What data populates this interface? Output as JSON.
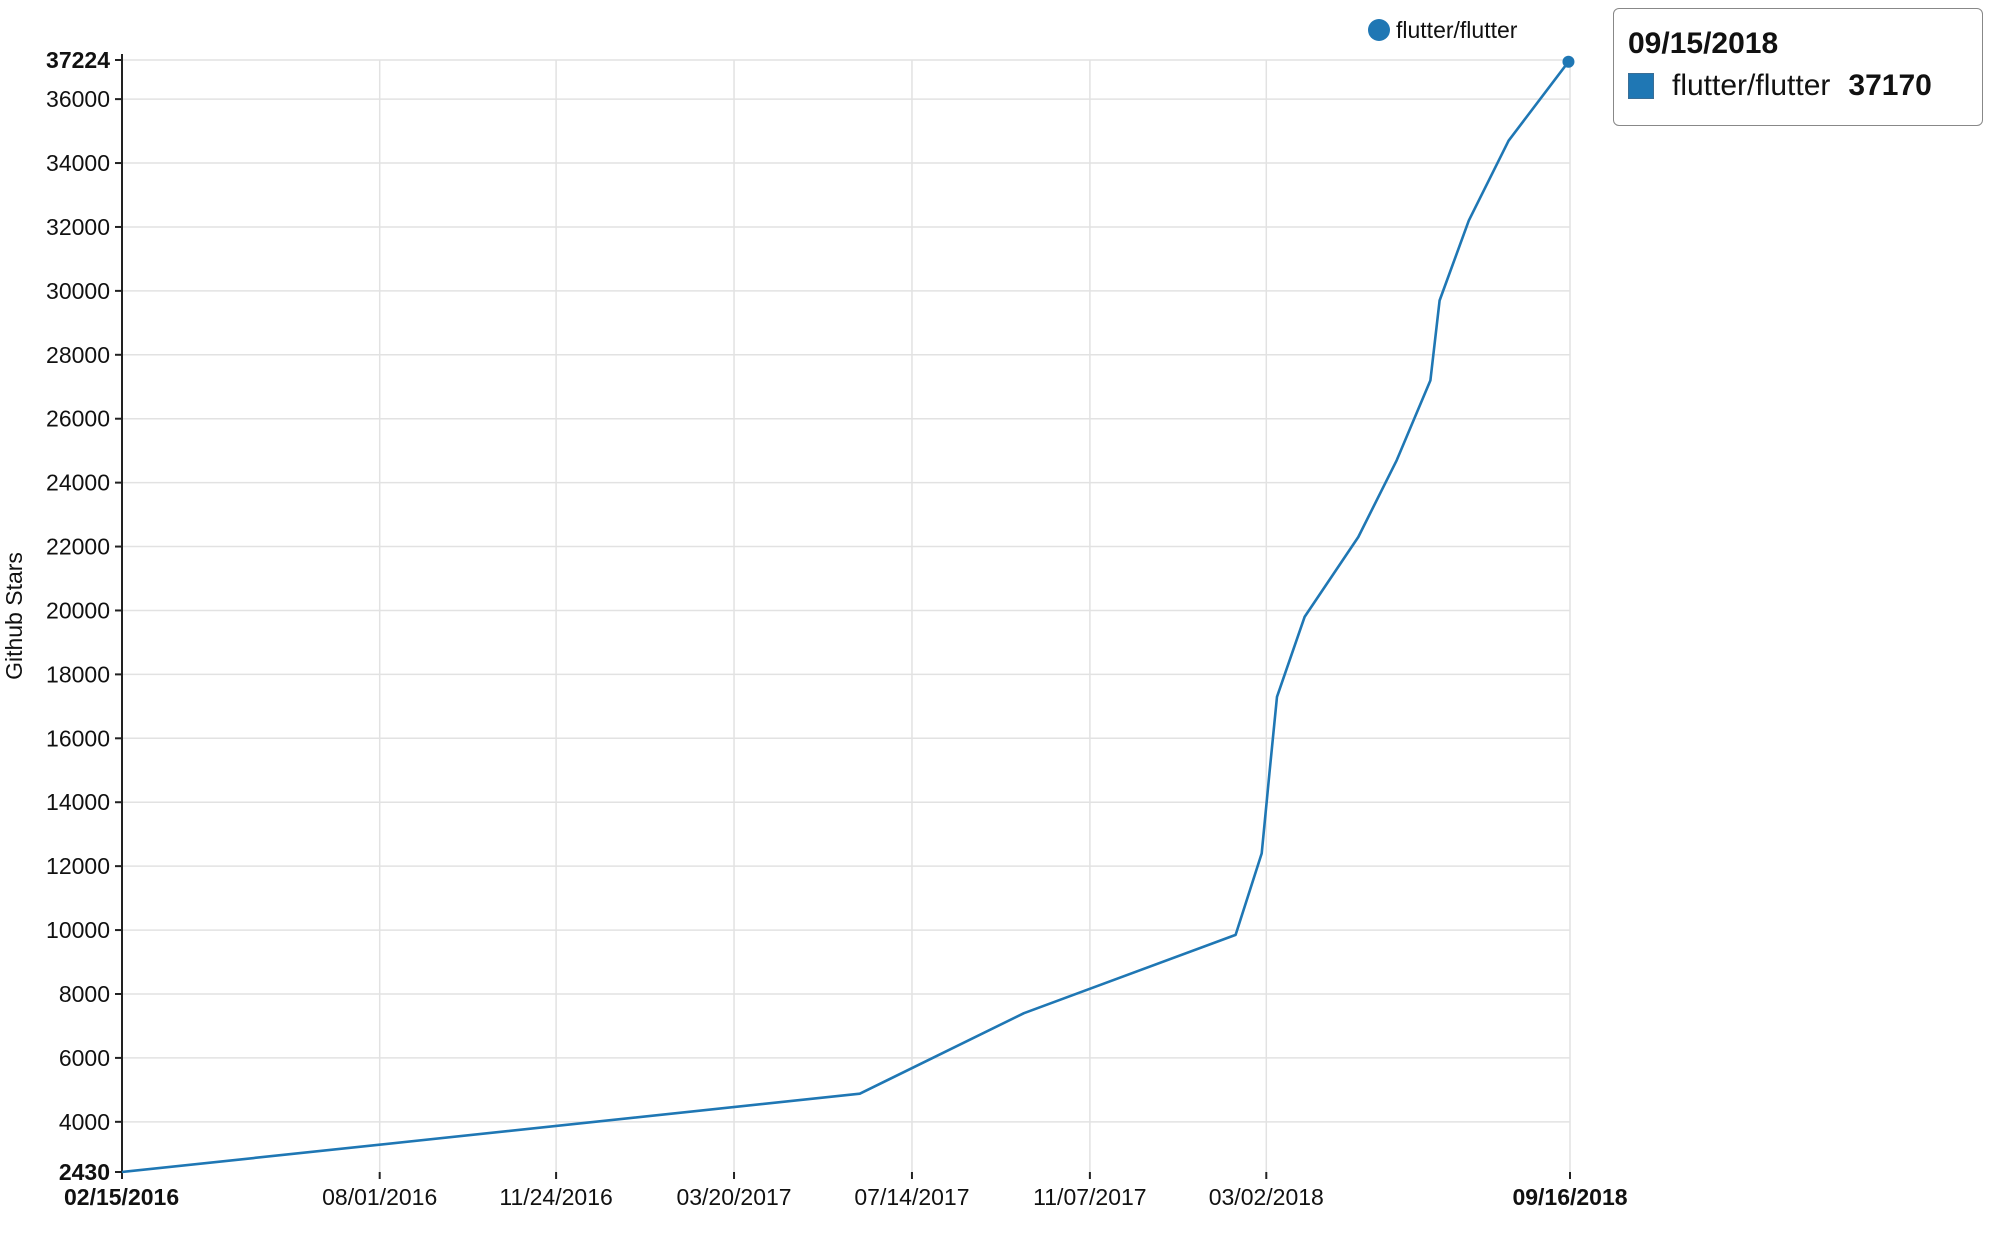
{
  "chart_data": {
    "type": "line",
    "xlabel": "",
    "ylabel": "Github Stars",
    "ylim": [
      2430,
      37224
    ],
    "xlim": [
      "02/15/2016",
      "09/16/2018"
    ],
    "y_ticks": [
      2430,
      4000,
      6000,
      8000,
      10000,
      12000,
      14000,
      16000,
      18000,
      20000,
      22000,
      24000,
      26000,
      28000,
      30000,
      32000,
      34000,
      36000,
      37224
    ],
    "y_ticks_bold": [
      2430,
      37224
    ],
    "x_ticks": [
      "02/15/2016",
      "08/01/2016",
      "11/24/2016",
      "03/20/2017",
      "07/14/2017",
      "11/07/2017",
      "03/02/2018",
      "09/16/2018"
    ],
    "x_ticks_bold": [
      "02/15/2016",
      "09/16/2018"
    ],
    "grid": true,
    "legend_position": "top-right",
    "series": [
      {
        "name": "flutter/flutter",
        "color": "#1f77b4",
        "points": [
          [
            "02/15/2016",
            2430
          ],
          [
            "06/10/2017",
            4880
          ],
          [
            "09/25/2017",
            7400
          ],
          [
            "02/10/2018",
            9850
          ],
          [
            "02/27/2018",
            12400
          ],
          [
            "03/04/2018",
            14900
          ],
          [
            "03/09/2018",
            17300
          ],
          [
            "03/27/2018",
            19800
          ],
          [
            "05/01/2018",
            22300
          ],
          [
            "05/26/2018",
            24700
          ],
          [
            "06/17/2018",
            27200
          ],
          [
            "06/23/2018",
            29700
          ],
          [
            "07/12/2018",
            32200
          ],
          [
            "08/07/2018",
            34700
          ],
          [
            "09/15/2018",
            37170
          ]
        ]
      }
    ]
  },
  "tooltip": {
    "date": "09/15/2018",
    "series_name": "flutter/flutter",
    "value": "37170"
  }
}
